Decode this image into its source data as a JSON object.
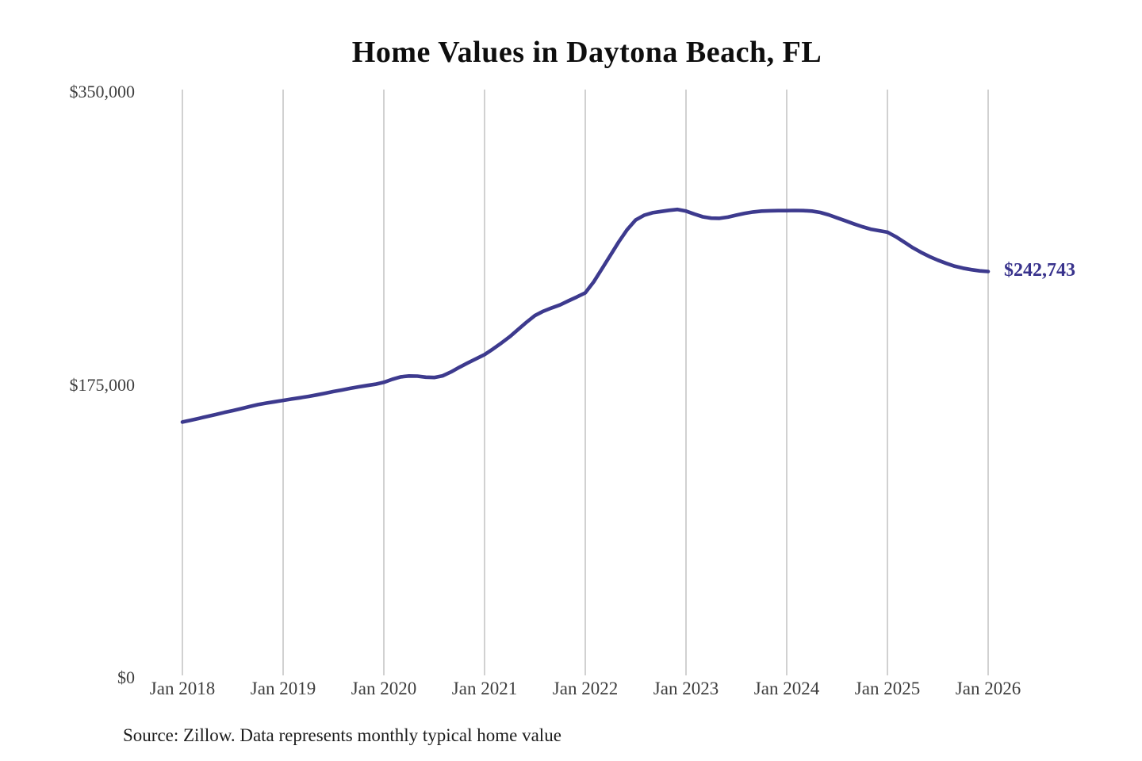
{
  "chart_data": {
    "type": "line",
    "title": "Home Values in Daytona Beach, FL",
    "frequency": "monthly",
    "x_start": "Jan 2018",
    "x_end": "Jan 2026",
    "x_ticks": [
      "Jan 2018",
      "Jan 2019",
      "Jan 2020",
      "Jan 2021",
      "Jan 2022",
      "Jan 2023",
      "Jan 2024",
      "Jan 2025",
      "Jan 2026"
    ],
    "y_ticks": [
      {
        "label": "$350,000",
        "value": 350000
      },
      {
        "label": "$175,000",
        "value": 175000
      },
      {
        "label": "$0",
        "value": 0
      }
    ],
    "ylim": [
      0,
      350000
    ],
    "grid": "vertical-only",
    "legend": "none",
    "series": [
      {
        "name": "Typical home value",
        "values": [
          152800,
          153900,
          155000,
          156200,
          157300,
          158500,
          159600,
          160800,
          162000,
          163200,
          164100,
          164900,
          165700,
          166500,
          167300,
          168100,
          169000,
          170000,
          171000,
          171900,
          172900,
          173800,
          174600,
          175400,
          176500,
          178300,
          179800,
          180300,
          180200,
          179600,
          179400,
          180400,
          182700,
          185500,
          188100,
          190600,
          193100,
          196400,
          200000,
          203800,
          208100,
          212400,
          216400,
          219000,
          221000,
          222800,
          225200,
          227500,
          230000,
          236500,
          244500,
          252500,
          260500,
          267800,
          273500,
          276300,
          277800,
          278600,
          279300,
          279800,
          278800,
          277000,
          275400,
          274600,
          274500,
          275200,
          276400,
          277500,
          278300,
          278800,
          279000,
          279100,
          279100,
          279200,
          279100,
          278800,
          278000,
          276600,
          274800,
          273000,
          271200,
          269500,
          268000,
          267100,
          266200,
          263500,
          260300,
          257000,
          254200,
          251700,
          249500,
          247600,
          245900,
          244700,
          243800,
          243100,
          242743
        ]
      }
    ],
    "end_label": "$242,743",
    "colors": {
      "line": "#3d3a8e",
      "end_label": "#38328c",
      "grid": "#cccccc",
      "title": "#0e0e0e",
      "axis_text": "#3e3e3e"
    }
  },
  "footer": {
    "source_note": "Source: Zillow. Data represents monthly typical home value"
  }
}
